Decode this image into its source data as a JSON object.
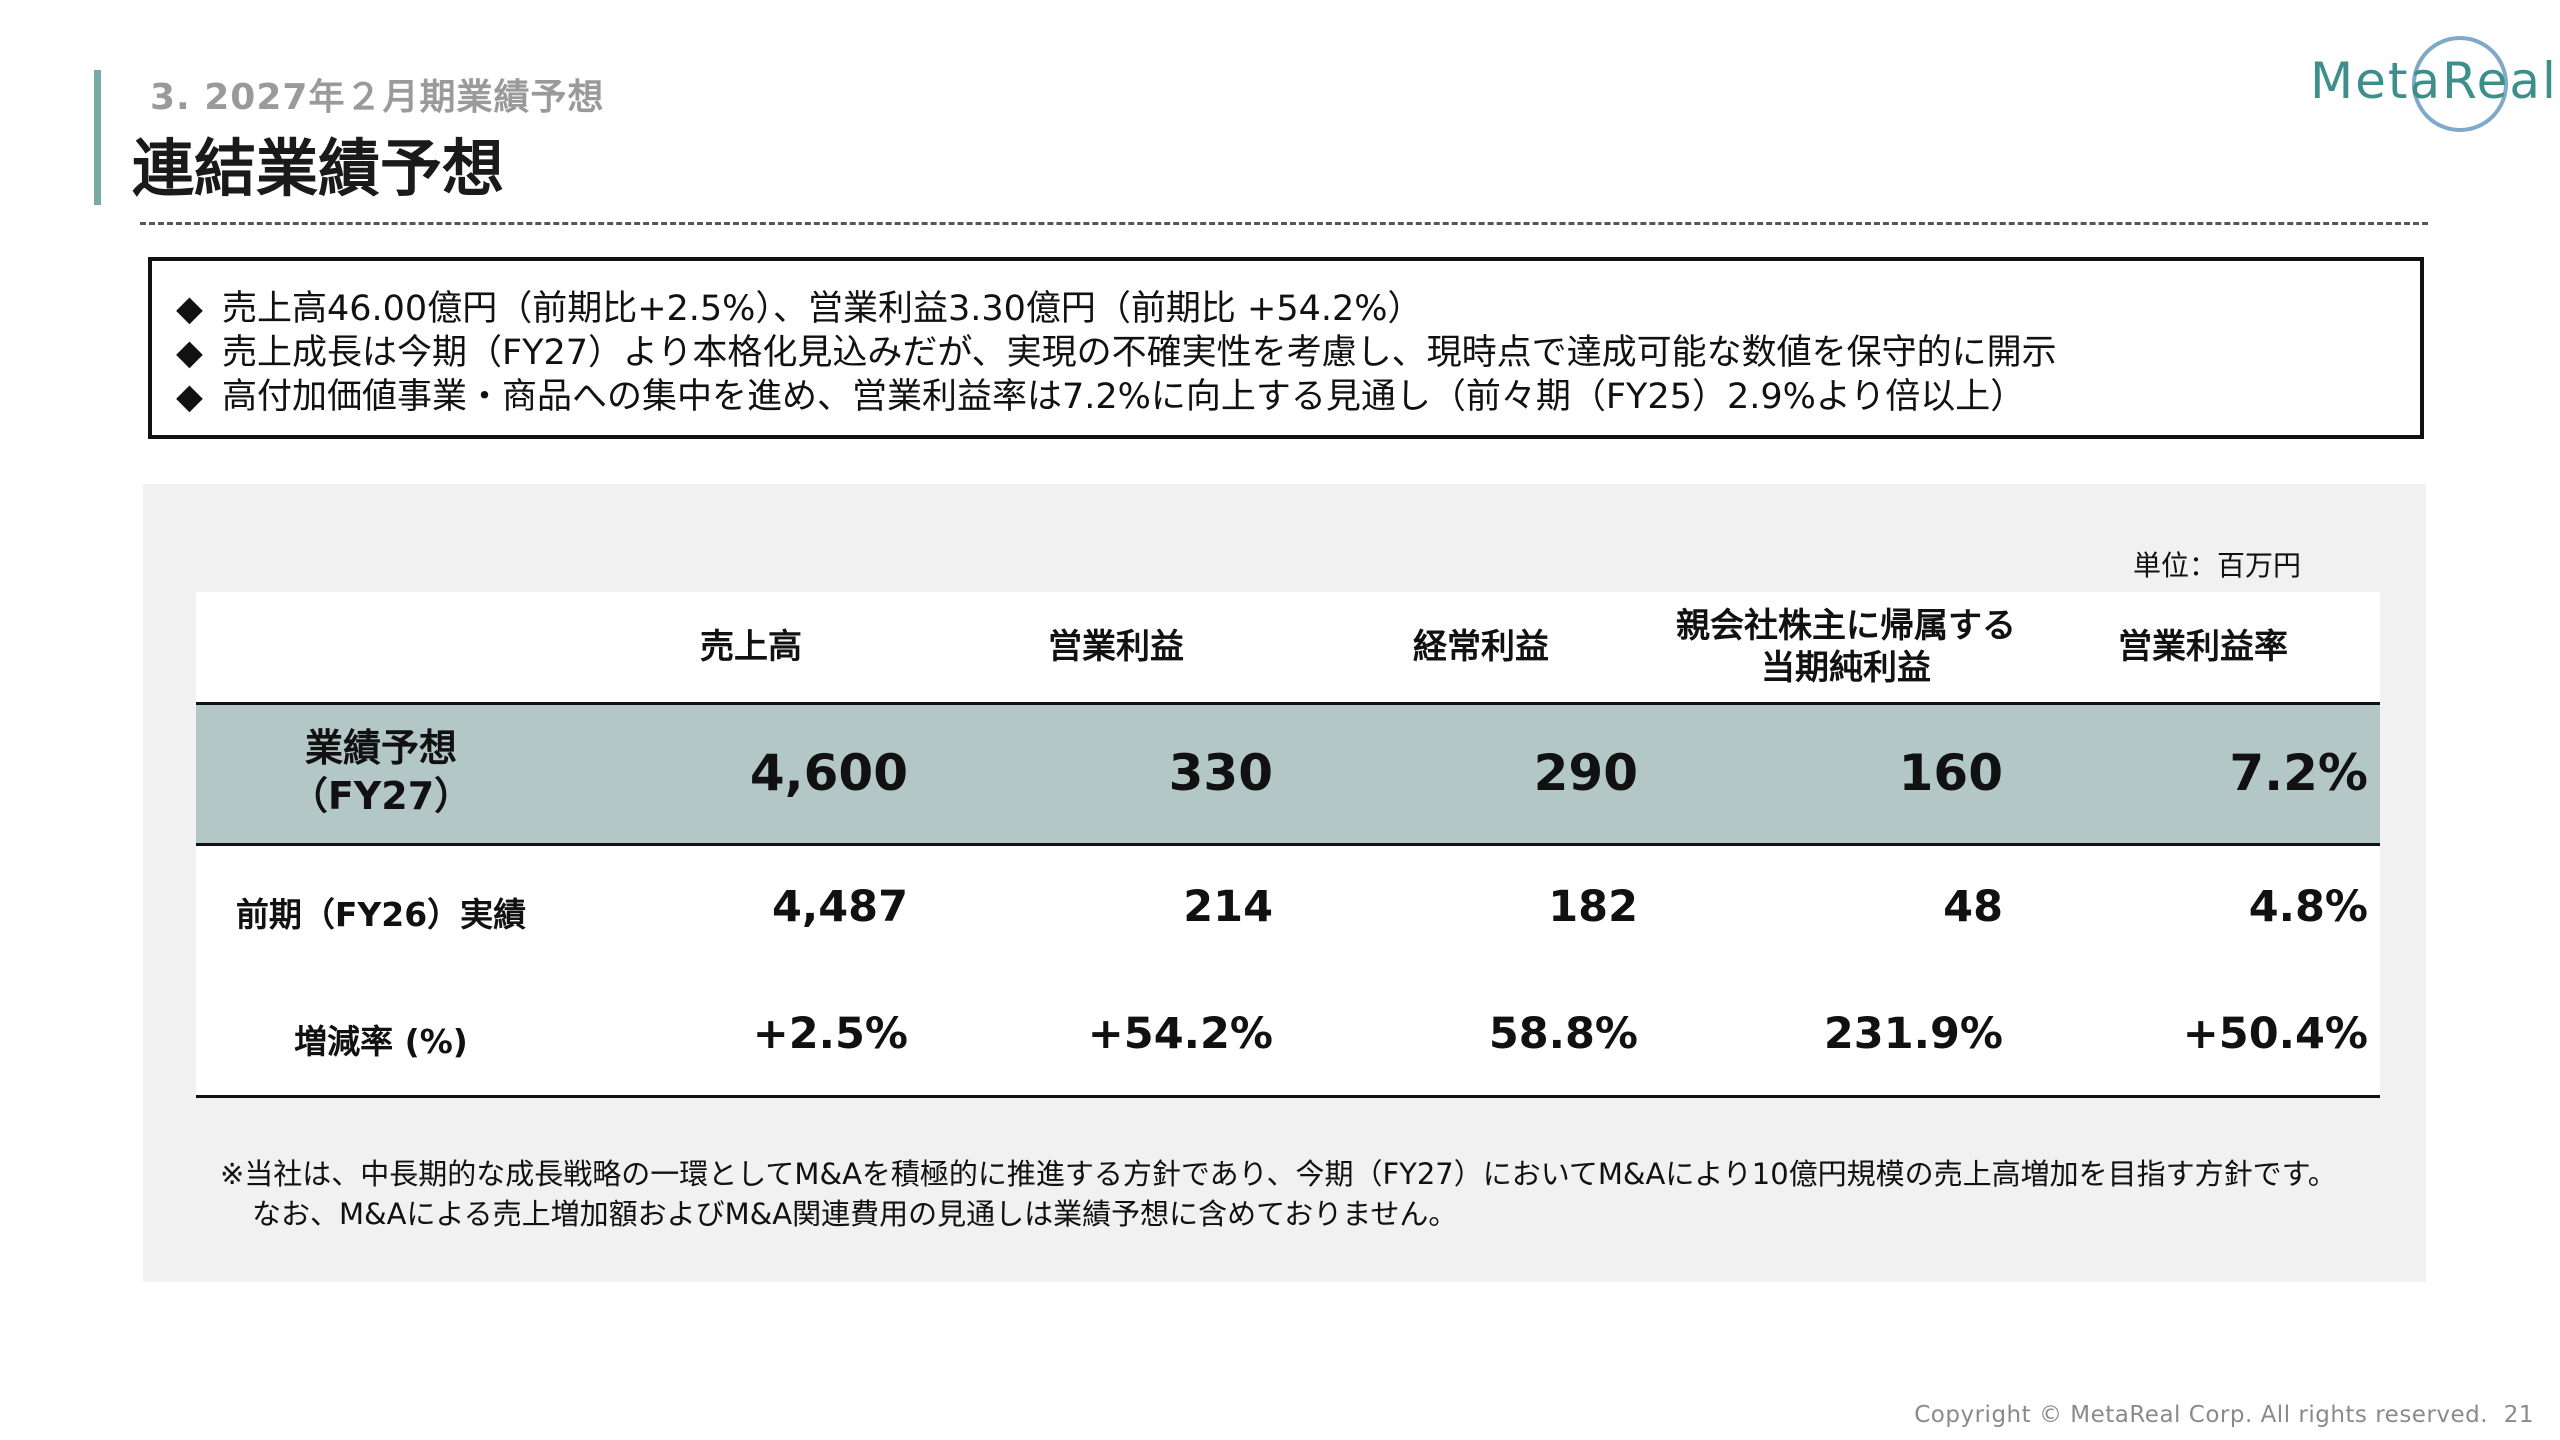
{
  "header": {
    "section_label": "3. 2027年２月期業績予想",
    "title": "連結業績予想",
    "logo_text": "MetaReal"
  },
  "summary": {
    "bullets": [
      "売上高46.00億円（前期比+2.5%）、営業利益3.30億円（前期比 +54.2%）",
      "売上成長は今期（FY27）より本格化見込みだが、実現の不確実性を考慮し、現時点で達成可能な数値を保守的に開示",
      "高付加価値事業・商品への集中を進め、営業利益率は7.2%に向上する見通し（前々期（FY25）2.9%より倍以上）"
    ],
    "bullet_mark": "◆"
  },
  "table": {
    "unit": "単位：百万円",
    "columns": [
      "売上高",
      "営業利益",
      "経常利益",
      "親会社株主に帰属する",
      "当期純利益",
      "営業利益率"
    ],
    "forecast": {
      "label_line1": "業績予想",
      "label_line2": "（FY27）",
      "values": [
        "4,600",
        "330",
        "290",
        "160",
        "7.2%"
      ]
    },
    "previous": {
      "label": "前期（FY26）実績",
      "values": [
        "4,487",
        "214",
        "182",
        "48",
        "4.8%"
      ]
    },
    "change": {
      "label": "増減率 (%)",
      "values": [
        "+2.5%",
        "+54.2%",
        "58.8%",
        "231.9%",
        "+50.4%"
      ]
    }
  },
  "note": {
    "line1": "※当社は、中長期的な成長戦略の一環としてM&Aを積極的に推進する方針であり、今期（FY27）においてM&Aにより10億円規模の売上高増加を目指す方針です。",
    "line2": "なお、M&Aによる売上増加額およびM&A関連費用の見通しは業績予想に含めておりません。"
  },
  "footer": {
    "copyright": "Copyright © MetaReal Corp. All rights reserved.",
    "page_number": "21"
  },
  "colors": {
    "accent": "#7aa8a4",
    "forecast_band": "#b3c8c6",
    "panel_bg": "#f1f1f1",
    "logo_teal": "#3e8f8c"
  }
}
